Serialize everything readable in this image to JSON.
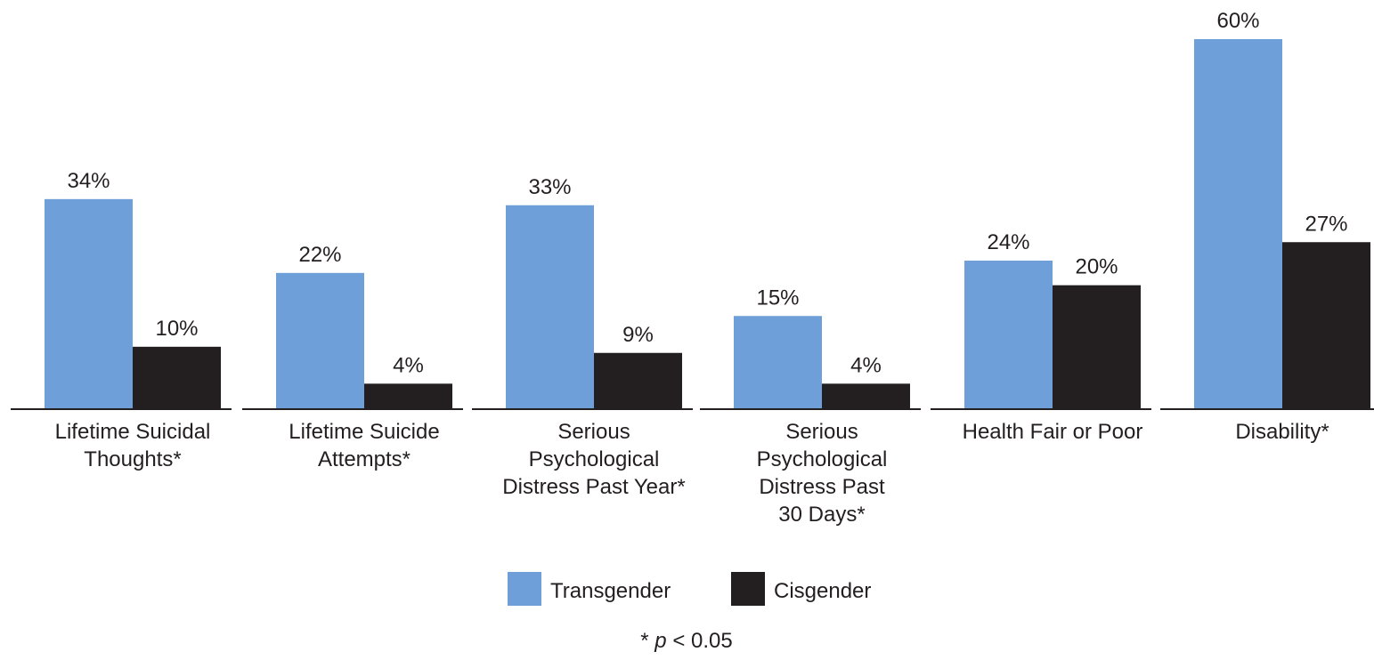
{
  "chart_data": {
    "type": "bar",
    "categories": [
      [
        "Lifetime Suicidal",
        "Thoughts*"
      ],
      [
        "Lifetime Suicide",
        "Attempts*"
      ],
      [
        "Serious",
        "Psychological",
        "Distress Past Year*"
      ],
      [
        "Serious",
        "Psychological",
        "Distress Past",
        "30 Days*"
      ],
      [
        "Health Fair or Poor"
      ],
      [
        "Disability*"
      ]
    ],
    "series": [
      {
        "name": "Transgender",
        "color": "#6f9fd8",
        "values": [
          34,
          22,
          33,
          15,
          24,
          60
        ],
        "labels": [
          "34%",
          "22%",
          "33%",
          "15%",
          "24%",
          "60%"
        ]
      },
      {
        "name": "Cisgender",
        "color": "#231f20",
        "values": [
          10,
          4,
          9,
          4,
          20,
          27
        ],
        "labels": [
          "10%",
          "4%",
          "9%",
          "4%",
          "20%",
          "27%"
        ]
      }
    ],
    "ylim": [
      0,
      60
    ],
    "legend": "bottom-center",
    "footnote_prefix": "* ",
    "footnote_p": "p",
    "footnote_suffix": " < 0.05"
  }
}
